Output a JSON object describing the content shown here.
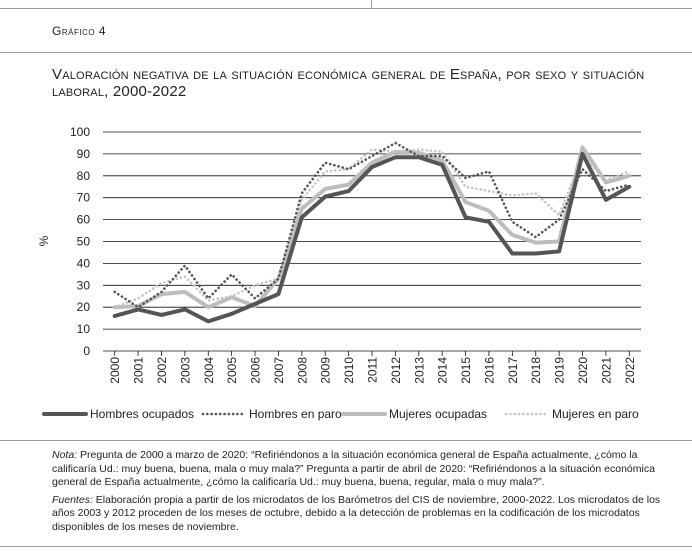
{
  "figure": {
    "label": "Gráfico 4",
    "title": "Valoración negativa de la situación económica general de España, por sexo y situación laboral, 2000-2022"
  },
  "chart_data": {
    "type": "line",
    "title": "Valoración negativa de la situación económica general de España, por sexo y situación laboral, 2000-2022",
    "xlabel": "",
    "ylabel": "%",
    "ylim": [
      0,
      100
    ],
    "yticks": [
      0,
      10,
      20,
      30,
      40,
      50,
      60,
      70,
      80,
      90,
      100
    ],
    "grid": "horizontal",
    "legend_position": "bottom",
    "categories": [
      "2000",
      "2001",
      "2002",
      "2003",
      "2004",
      "2005",
      "2006",
      "2007",
      "2008",
      "2009",
      "2010",
      "2011",
      "2012",
      "2013",
      "2014",
      "2015",
      "2016",
      "2017",
      "2018",
      "2019",
      "2020",
      "2021",
      "2022"
    ],
    "series": [
      {
        "name": "Hombres ocupados",
        "style": "solid",
        "color": "#555555",
        "values": [
          16,
          19,
          16.5,
          19,
          13.5,
          17,
          21.5,
          26,
          61,
          70.5,
          73,
          84,
          88.5,
          88.5,
          85,
          61,
          59,
          44.5,
          44.5,
          45.5,
          90,
          69,
          75
        ]
      },
      {
        "name": "Hombres en paro",
        "style": "dotted",
        "color": "#555555",
        "values": [
          27,
          20,
          27,
          39,
          24,
          35,
          24,
          33,
          72,
          86,
          83,
          89,
          95,
          89,
          89,
          79,
          82,
          59,
          52,
          60,
          83,
          73,
          76
        ]
      },
      {
        "name": "Mujeres ocupadas",
        "style": "solid",
        "color": "#bdbdbd",
        "values": [
          20,
          20.5,
          26,
          27,
          20,
          24.5,
          20.5,
          33,
          65,
          74,
          76,
          86,
          91,
          90.5,
          87,
          68,
          64,
          53,
          49.5,
          50,
          93,
          77,
          80
        ]
      },
      {
        "name": "Mujeres en paro",
        "style": "dotted",
        "color": "#c4c4c4",
        "values": [
          20,
          24,
          31,
          34,
          23,
          25,
          30,
          33,
          69,
          82,
          83,
          92,
          91,
          92,
          91,
          75,
          73,
          71,
          72,
          62,
          89,
          78,
          82
        ]
      }
    ]
  },
  "notes": {
    "nota_label": "Nota:",
    "nota_text": " Pregunta de 2000 a marzo de 2020: “Refiriéndonos a la situación económica general de España actualmente, ¿cómo la calificaría Ud.: muy buena, buena, mala o muy mala?” Pregunta a partir de abril de 2020: “Refiriéndonos a la situación económica general de España actualmente, ¿cómo la calificaría Ud.: muy buena, buena, regular, mala o muy mala?”.",
    "fuentes_label": "Fuentes:",
    "fuentes_text": " Elaboración propia a partir de los microdatos de los Barómetros del CIS de noviembre, 2000-2022. Los microdatos de los años 2003 y 2012 proceden de los meses de octubre, debido a la detección de problemas en la codificación de los microdatos disponibles de los meses de noviembre."
  }
}
